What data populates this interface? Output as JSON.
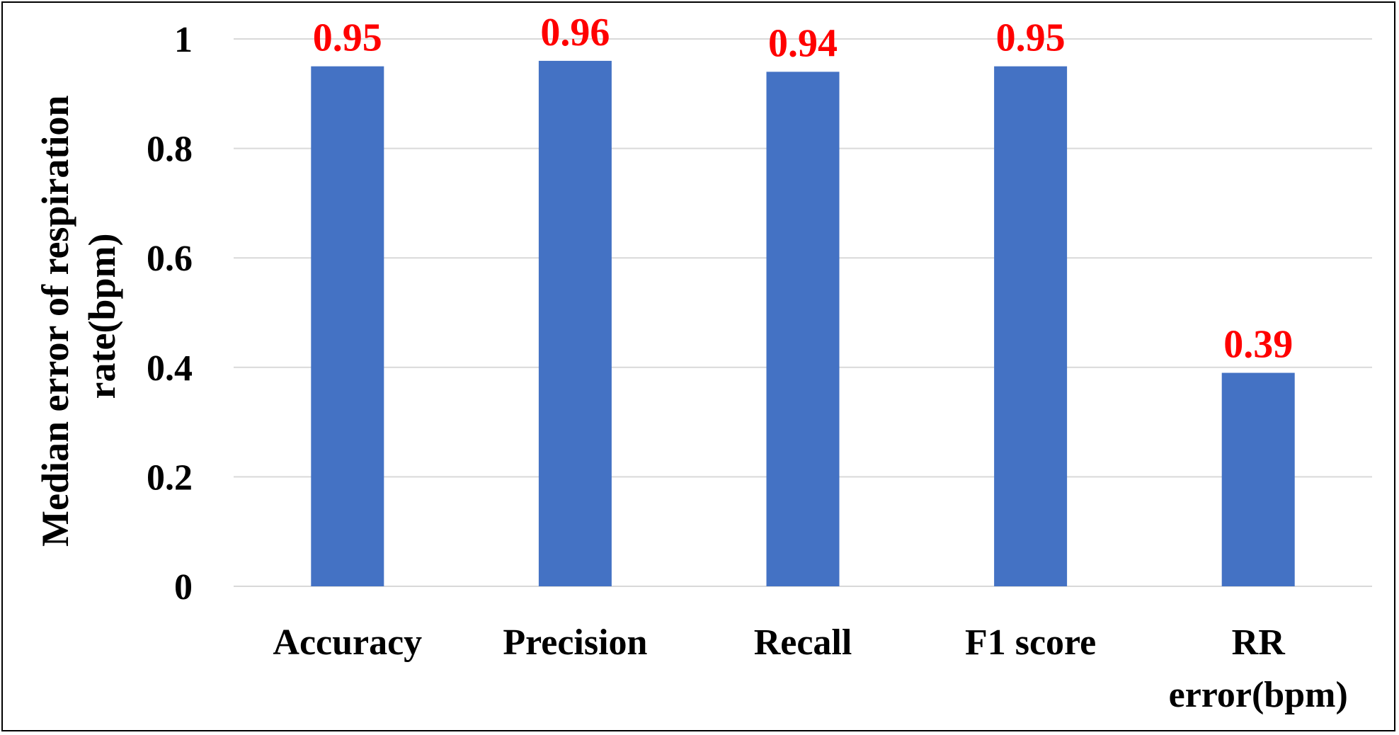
{
  "chart_data": {
    "type": "bar",
    "categories": [
      [
        "Accuracy"
      ],
      [
        "Precision"
      ],
      [
        "Recall"
      ],
      [
        "F1 score"
      ],
      [
        "RR",
        "error(bpm)"
      ]
    ],
    "values": [
      0.95,
      0.96,
      0.94,
      0.95,
      0.39
    ],
    "data_labels": [
      "0.95",
      "0.96",
      "0.94",
      "0.95",
      "0.39"
    ],
    "ylabel": [
      "Median error of respiration",
      "rate(bpm)"
    ],
    "xlabel": "",
    "ylim": [
      0,
      1
    ],
    "yticks": [
      0,
      0.2,
      0.4,
      0.6,
      0.8,
      1
    ],
    "ytick_labels": [
      "0",
      "0.2",
      "0.4",
      "0.6",
      "0.8",
      "1"
    ],
    "grid": true,
    "legend": "none",
    "colors": {
      "bar": "#4472C4",
      "data_label": "#FF0000",
      "grid": "#D9D9D9",
      "text": "#000000"
    }
  }
}
